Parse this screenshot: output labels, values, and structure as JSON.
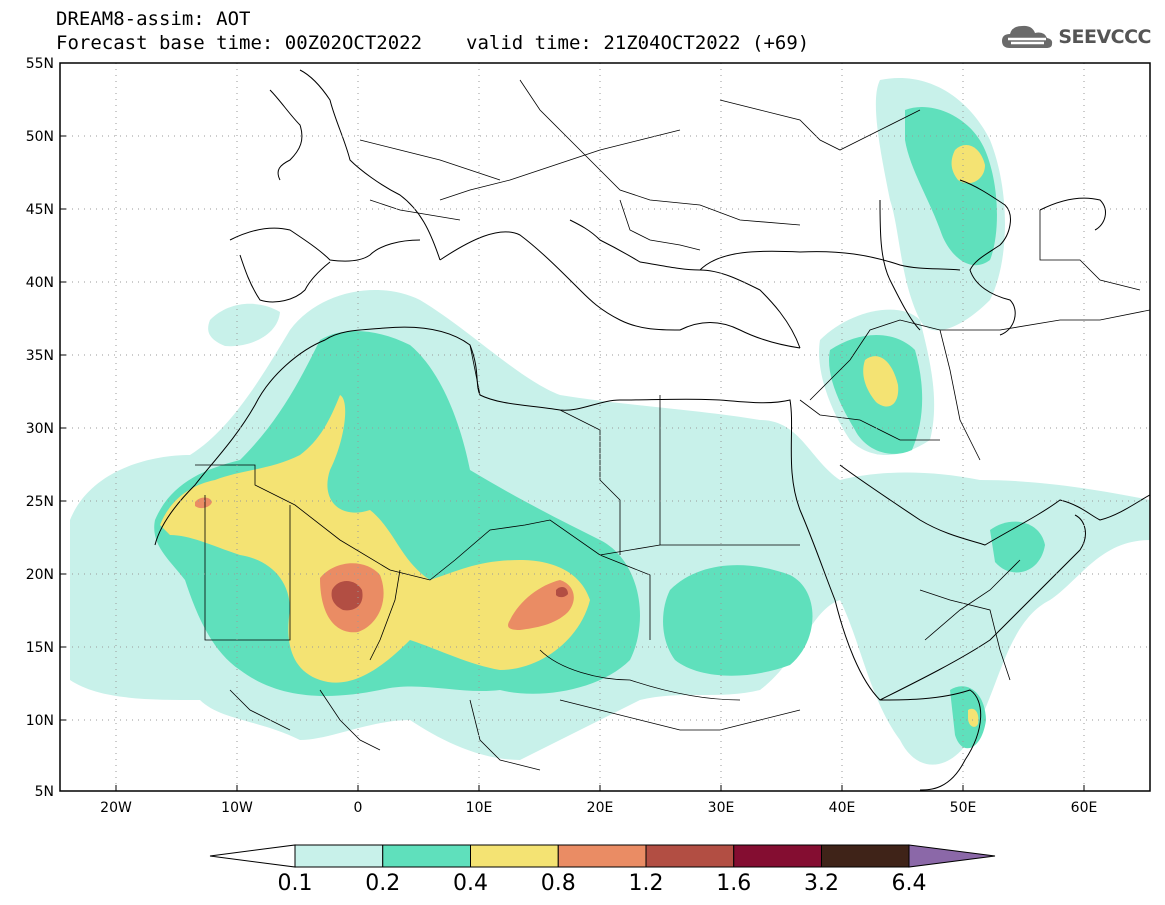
{
  "header": {
    "line1": "DREAM8-assim: AOT",
    "base_time": "Forecast base time: 00Z02OCT2022",
    "valid_time": "valid time: 21Z04OCT2022 (+69)",
    "logo_text": "SEEVCCC",
    "logo_icon": "cloud-icon"
  },
  "map": {
    "lon_range": [
      -25,
      65
    ],
    "lat_range": [
      5,
      55
    ],
    "lat_labels": [
      "55N",
      "50N",
      "45N",
      "40N",
      "35N",
      "30N",
      "25N",
      "20N",
      "15N",
      "10N",
      "5N"
    ],
    "lon_labels": [
      "20W",
      "10W",
      "0",
      "10E",
      "20E",
      "30E",
      "40E",
      "50E",
      "60E"
    ]
  },
  "colorbar": {
    "colors": [
      "#ffffff",
      "#c8f1ea",
      "#5fe0bc",
      "#f4e373",
      "#ea8c64",
      "#b24e43",
      "#840d31",
      "#3f2318",
      "#8b68a8"
    ],
    "labels": [
      "0.1",
      "0.2",
      "0.4",
      "0.8",
      "1.2",
      "1.6",
      "3.2",
      "6.4"
    ]
  }
}
